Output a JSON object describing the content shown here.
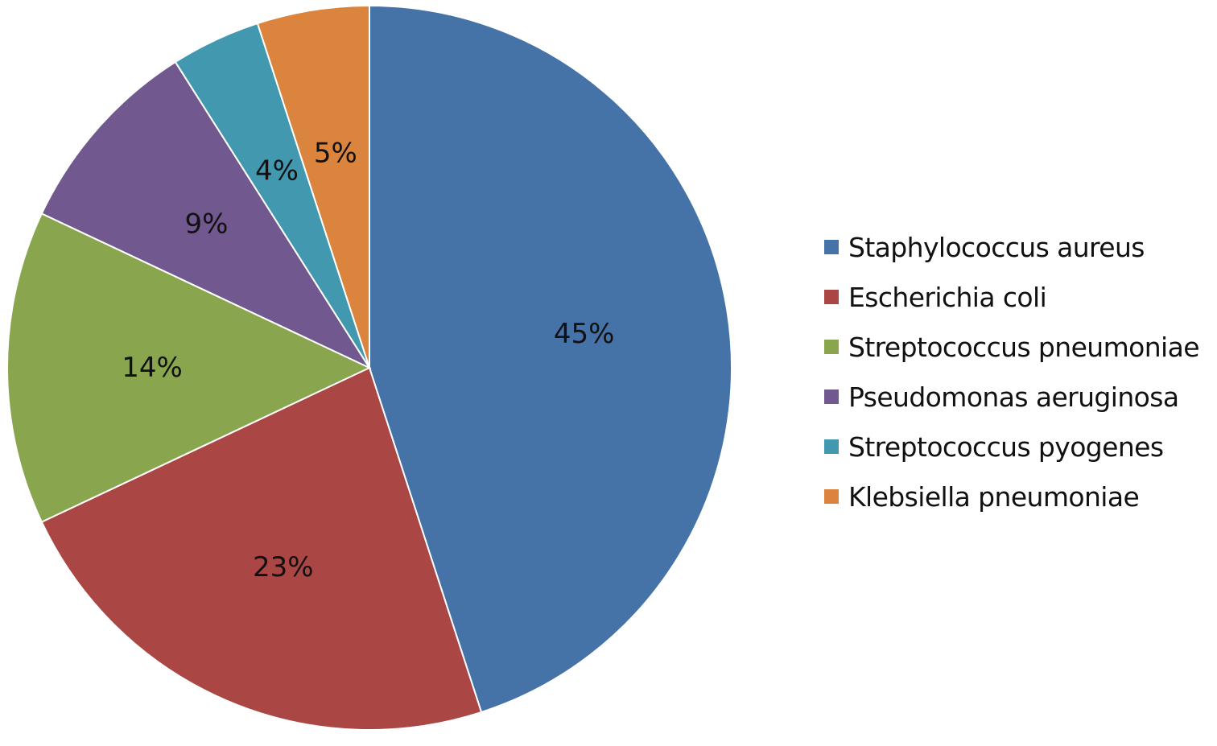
{
  "chart_data": {
    "type": "pie",
    "title": "",
    "legend_position": "right",
    "slices": [
      {
        "name": "Staphylococcus aureus",
        "value": 45,
        "label": "45%",
        "color": "#4572A7"
      },
      {
        "name": "Escherichia coli",
        "value": 23,
        "label": "23%",
        "color": "#AA4643"
      },
      {
        "name": "Streptococcus pneumoniae",
        "value": 14,
        "label": "14%",
        "color": "#89A54E"
      },
      {
        "name": "Pseudomonas aeruginosa",
        "value": 9,
        "label": "9%",
        "color": "#71588F"
      },
      {
        "name": "Streptococcus pyogenes",
        "value": 4,
        "label": "4%",
        "color": "#4198AF"
      },
      {
        "name": "Klebsiella pneumoniae",
        "value": 5,
        "label": "5%",
        "color": "#DB843D"
      }
    ]
  }
}
